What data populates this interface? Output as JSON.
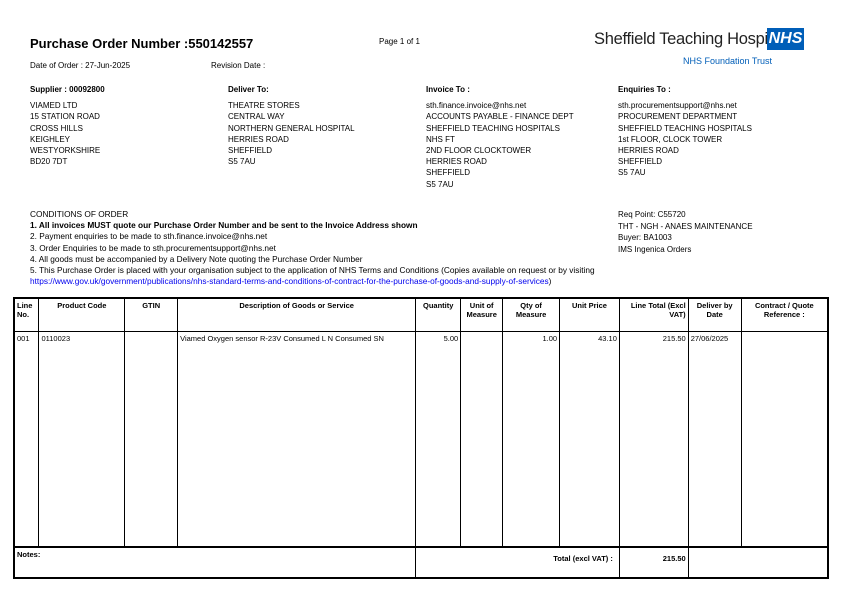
{
  "header": {
    "title": "Purchase Order Number :550142557",
    "page": "Page 1 of 1",
    "date_of_order": "Date of Order : 27-Jun-2025",
    "revision_date": "Revision Date :"
  },
  "logo": {
    "name": "Sheffield Teaching Hospitals",
    "badge": "NHS",
    "subtitle": "NHS Foundation Trust",
    "color": "#005eb8"
  },
  "supplier": {
    "heading": "Supplier : 00092800",
    "lines": [
      "VIAMED LTD",
      "15 STATION ROAD",
      "CROSS HILLS",
      "KEIGHLEY",
      "WESTYORKSHIRE",
      "BD20 7DT"
    ]
  },
  "deliver": {
    "heading": "Deliver To:",
    "lines": [
      "THEATRE STORES",
      "CENTRAL WAY",
      "NORTHERN GENERAL HOSPITAL",
      "HERRIES ROAD",
      "SHEFFIELD",
      "S5 7AU"
    ]
  },
  "invoice": {
    "heading": "Invoice To :",
    "lines": [
      "sth.finance.invoice@nhs.net",
      "ACCOUNTS PAYABLE - FINANCE DEPT",
      "SHEFFIELD TEACHING HOSPITALS",
      "NHS FT",
      "2ND FLOOR CLOCKTOWER",
      "HERRIES ROAD",
      "SHEFFIELD",
      "S5 7AU"
    ]
  },
  "enquiries": {
    "heading": "Enquiries To :",
    "lines": [
      "sth.procurementsupport@nhs.net",
      "PROCUREMENT DEPARTMENT",
      "SHEFFIELD TEACHING HOSPITALS",
      "1st FLOOR, CLOCK TOWER",
      "HERRIES ROAD",
      "SHEFFIELD",
      "S5 7AU"
    ]
  },
  "conditions": {
    "heading": "CONDITIONS OF ORDER",
    "items": [
      "1. All invoices MUST quote our Purchase Order Number and be sent to the Invoice Address shown",
      "2. Payment enquiries to be made to sth.finance.invoice@nhs.net",
      "3. Order Enquiries to be made to sth.procurementsupport@nhs.net",
      "4. All goods must be accompanied by a Delivery Note quoting the Purchase Order Number",
      "5. This Purchase Order is placed with your organisation subject to the application of NHS Terms and Conditions (Copies available on request or by visiting"
    ],
    "link": "https://www.gov.uk/government/publications/nhs-standard-terms-and-conditions-of-contract-for-the-purchase-of-goods-and-supply-of-services",
    "link_close": ")"
  },
  "req": {
    "lines": [
      "Req Point: C55720",
      "THT - NGH - ANAES MAINTENANCE",
      "Buyer: BA1003",
      "IMS Ingenica Orders"
    ]
  },
  "table": {
    "headers": [
      "Line No.",
      "Product Code",
      "GTIN",
      "Description of Goods or Service",
      "Quantity",
      "Unit of Measure",
      "Qty of Measure",
      "Unit Price",
      "Line Total (Excl VAT)",
      "Deliver by Date",
      "Contract / Quote Reference :"
    ],
    "rows": [
      [
        "001",
        "0110023",
        "",
        "Viamed Oxygen sensor R-23V    Consumed L N Consumed SN",
        "5.00",
        "",
        "1.00",
        "43.10",
        "215.50",
        "27/06/2025",
        ""
      ]
    ],
    "notes_label": "Notes:",
    "total_label": "Total (excl VAT) :",
    "total_value": "215.50"
  }
}
